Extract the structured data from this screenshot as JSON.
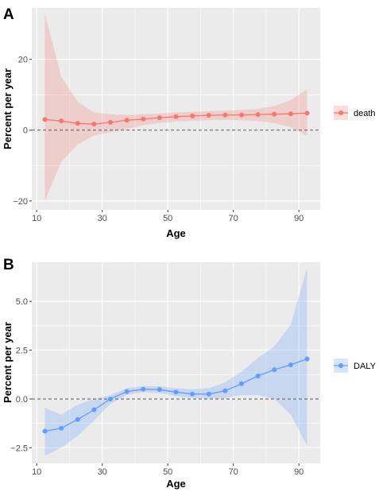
{
  "chart_data": [
    {
      "type": "line",
      "panel_label": "A",
      "x": [
        12.5,
        17.5,
        22.5,
        27.5,
        32.5,
        37.5,
        42.5,
        47.5,
        52.5,
        57.5,
        62.5,
        67.5,
        72.5,
        77.5,
        82.5,
        87.5,
        92.5
      ],
      "series": [
        {
          "name": "death",
          "color": "#F8766D",
          "values": [
            3.0,
            2.6,
            1.9,
            1.7,
            2.2,
            2.8,
            3.1,
            3.5,
            3.8,
            4.0,
            4.2,
            4.3,
            4.3,
            4.4,
            4.5,
            4.6,
            4.8
          ],
          "lower": [
            -20.0,
            -9.0,
            -4.0,
            -1.5,
            -0.6,
            0.3,
            1.4,
            2.0,
            2.4,
            2.7,
            2.8,
            2.9,
            2.8,
            2.6,
            2.0,
            0.8,
            -1.5
          ],
          "upper": [
            33.0,
            15.0,
            8.0,
            5.0,
            4.5,
            4.3,
            4.5,
            4.7,
            5.0,
            5.2,
            5.4,
            5.5,
            5.7,
            6.0,
            6.8,
            8.5,
            11.5
          ]
        }
      ],
      "xlabel": "Age",
      "ylabel": "Percent per year",
      "xlim": [
        8.5,
        96.5
      ],
      "ylim": [
        -22.5,
        34.5
      ],
      "xticks": [
        10,
        30,
        50,
        70,
        90
      ],
      "yticks": [
        -20,
        0,
        20
      ],
      "ytick_labels": [
        "−20",
        "0",
        "20"
      ],
      "reference_line": 0,
      "grid": true,
      "legend_position": "right"
    },
    {
      "type": "line",
      "panel_label": "B",
      "x": [
        12.5,
        17.5,
        22.5,
        27.5,
        32.5,
        37.5,
        42.5,
        47.5,
        52.5,
        57.5,
        62.5,
        67.5,
        72.5,
        77.5,
        82.5,
        87.5,
        92.5
      ],
      "series": [
        {
          "name": "DALY",
          "color": "#619CFF",
          "values": [
            -1.65,
            -1.5,
            -1.05,
            -0.55,
            0.0,
            0.38,
            0.5,
            0.48,
            0.35,
            0.25,
            0.25,
            0.42,
            0.78,
            1.18,
            1.5,
            1.75,
            2.05
          ],
          "lower": [
            -2.9,
            -2.5,
            -1.9,
            -1.1,
            -0.25,
            0.2,
            0.35,
            0.3,
            0.15,
            0.05,
            0.0,
            0.05,
            0.2,
            0.2,
            0.0,
            -0.8,
            -2.4
          ],
          "upper": [
            -0.45,
            -0.8,
            -0.3,
            0.0,
            0.2,
            0.55,
            0.65,
            0.65,
            0.55,
            0.5,
            0.55,
            0.85,
            1.4,
            2.1,
            2.7,
            3.8,
            6.7
          ]
        }
      ],
      "xlabel": "Age",
      "ylabel": "Percent per year",
      "xlim": [
        8.5,
        96.5
      ],
      "ylim": [
        -3.3,
        7.0
      ],
      "xticks": [
        10,
        30,
        50,
        70,
        90
      ],
      "yticks": [
        -2.5,
        0.0,
        2.5,
        5.0
      ],
      "ytick_labels": [
        "−2.5",
        "0.0",
        "2.5",
        "5.0"
      ],
      "reference_line": 0,
      "grid": true,
      "legend_position": "right"
    }
  ]
}
